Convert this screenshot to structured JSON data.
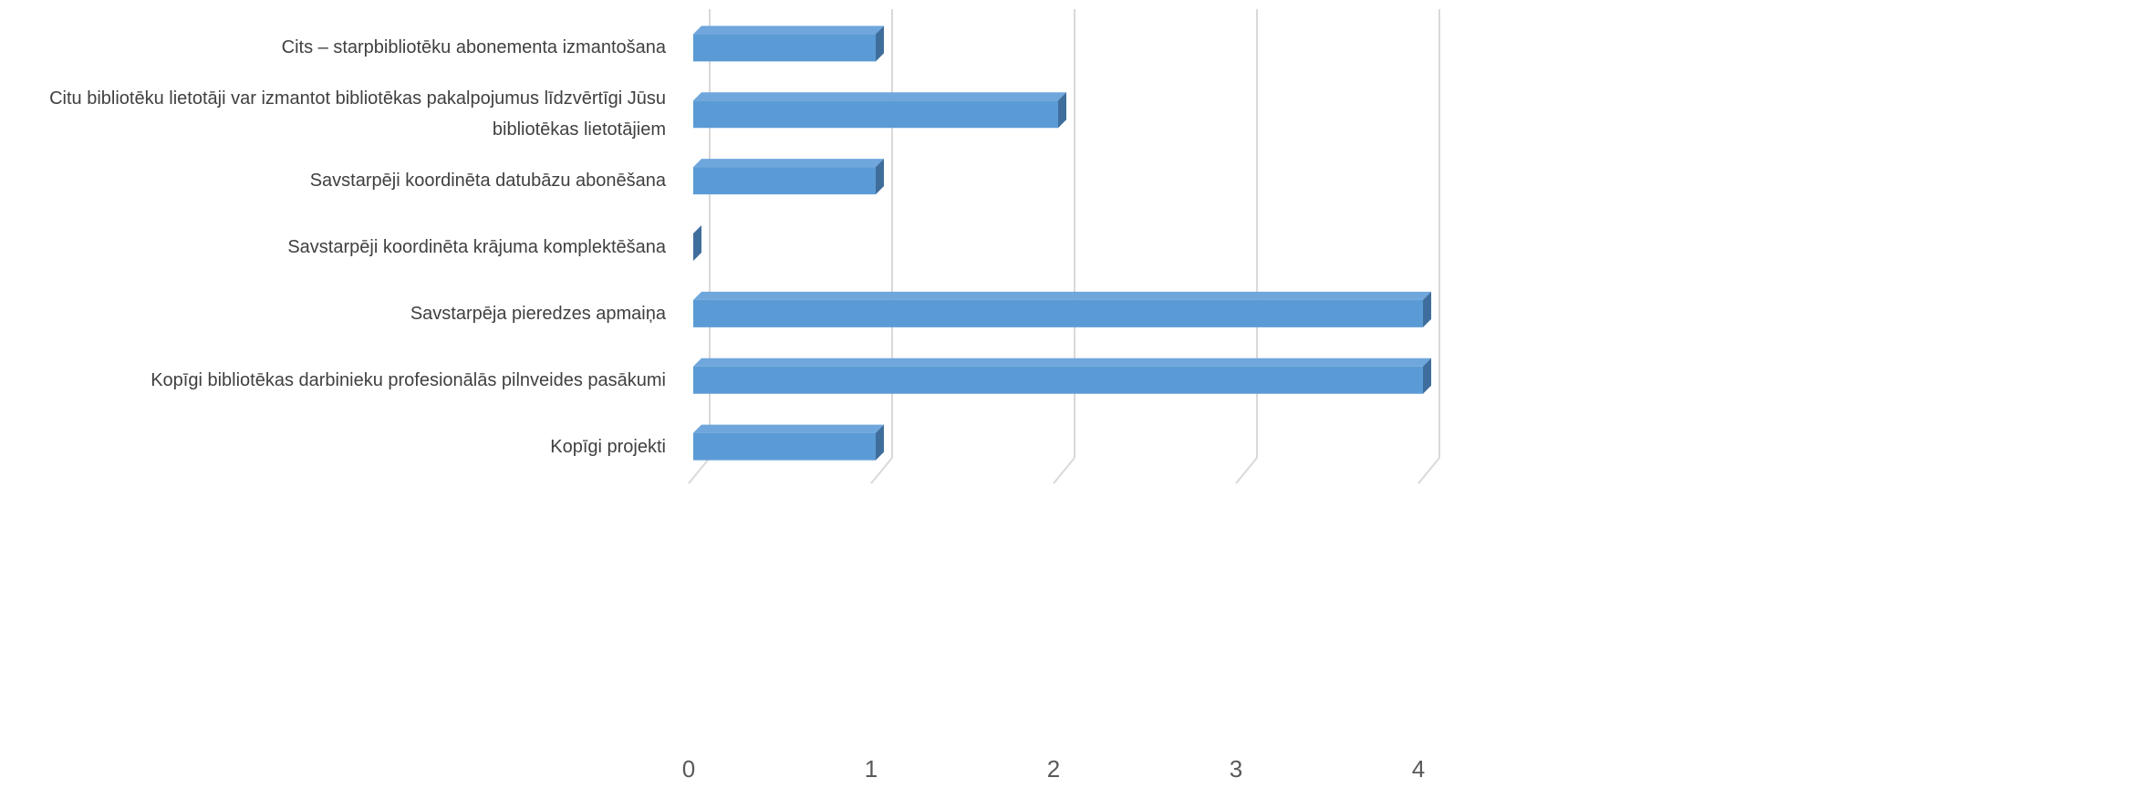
{
  "chart_data": {
    "type": "bar",
    "orientation": "horizontal",
    "style": "3d",
    "categories": [
      "Cits – starpbibliotēku abonementa izmantošana",
      "Citu bibliotēku lietotāji var izmantot bibliotēkas pakalpojumus līdzvērtīgi Jūsu bibliotēkas lietotājiem",
      "Savstarpēji koordinēta datubāzu abonēšana",
      "Savstarpēji koordinēta krājuma komplektēšana",
      "Savstarpēja pieredzes apmaiņa",
      "Kopīgi bibliotēkas darbinieku profesionālās pilnveides pasākumi",
      "Kopīgi projekti"
    ],
    "values": [
      1,
      2,
      1,
      0,
      4,
      4,
      1
    ],
    "color": "#5b9bd5",
    "xlim": [
      0,
      4
    ],
    "xticks": [
      0,
      1,
      2,
      3,
      4
    ],
    "grid": true
  }
}
